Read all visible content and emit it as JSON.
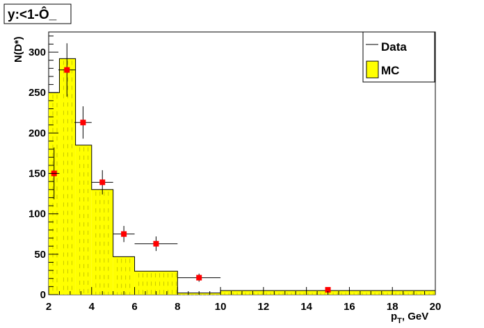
{
  "chart_data": {
    "type": "bar",
    "title": "y:<1-Ô_",
    "xlabel": "p",
    "xlabel_sub": "T",
    "xlabel_suffix": ", GeV",
    "ylabel": "N(D*)",
    "xlim": [
      2,
      20
    ],
    "ylim": [
      0,
      325
    ],
    "x_ticks": [
      2,
      4,
      6,
      8,
      10,
      12,
      14,
      16,
      18,
      20
    ],
    "y_ticks": [
      0,
      50,
      100,
      150,
      200,
      250,
      300
    ],
    "grid": false,
    "legend_position": "top-right",
    "mc_histogram": {
      "name": "MC",
      "color": "#ffff00",
      "bin_edges": [
        2,
        2.5,
        3.25,
        4,
        5,
        6,
        8,
        10,
        20
      ],
      "values": [
        250,
        292,
        185,
        130,
        47,
        29,
        2,
        5
      ]
    },
    "data_points": {
      "name": "Data",
      "color": "#ff0000",
      "points": [
        {
          "x": 2.25,
          "y": 150,
          "xerr": 0.25,
          "yerr": 32
        },
        {
          "x": 2.85,
          "y": 278,
          "xerr": 0.4,
          "yerr": 33
        },
        {
          "x": 3.6,
          "y": 213,
          "xerr": 0.4,
          "yerr": 20
        },
        {
          "x": 4.5,
          "y": 139,
          "xerr": 0.5,
          "yerr": 15
        },
        {
          "x": 5.5,
          "y": 75,
          "xerr": 0.5,
          "yerr": 10
        },
        {
          "x": 7.0,
          "y": 63,
          "xerr": 1.0,
          "yerr": 9
        },
        {
          "x": 9.0,
          "y": 21,
          "xerr": 1.0,
          "yerr": 5
        },
        {
          "x": 15.0,
          "y": 6,
          "xerr": 0,
          "yerr": 0
        }
      ]
    }
  }
}
